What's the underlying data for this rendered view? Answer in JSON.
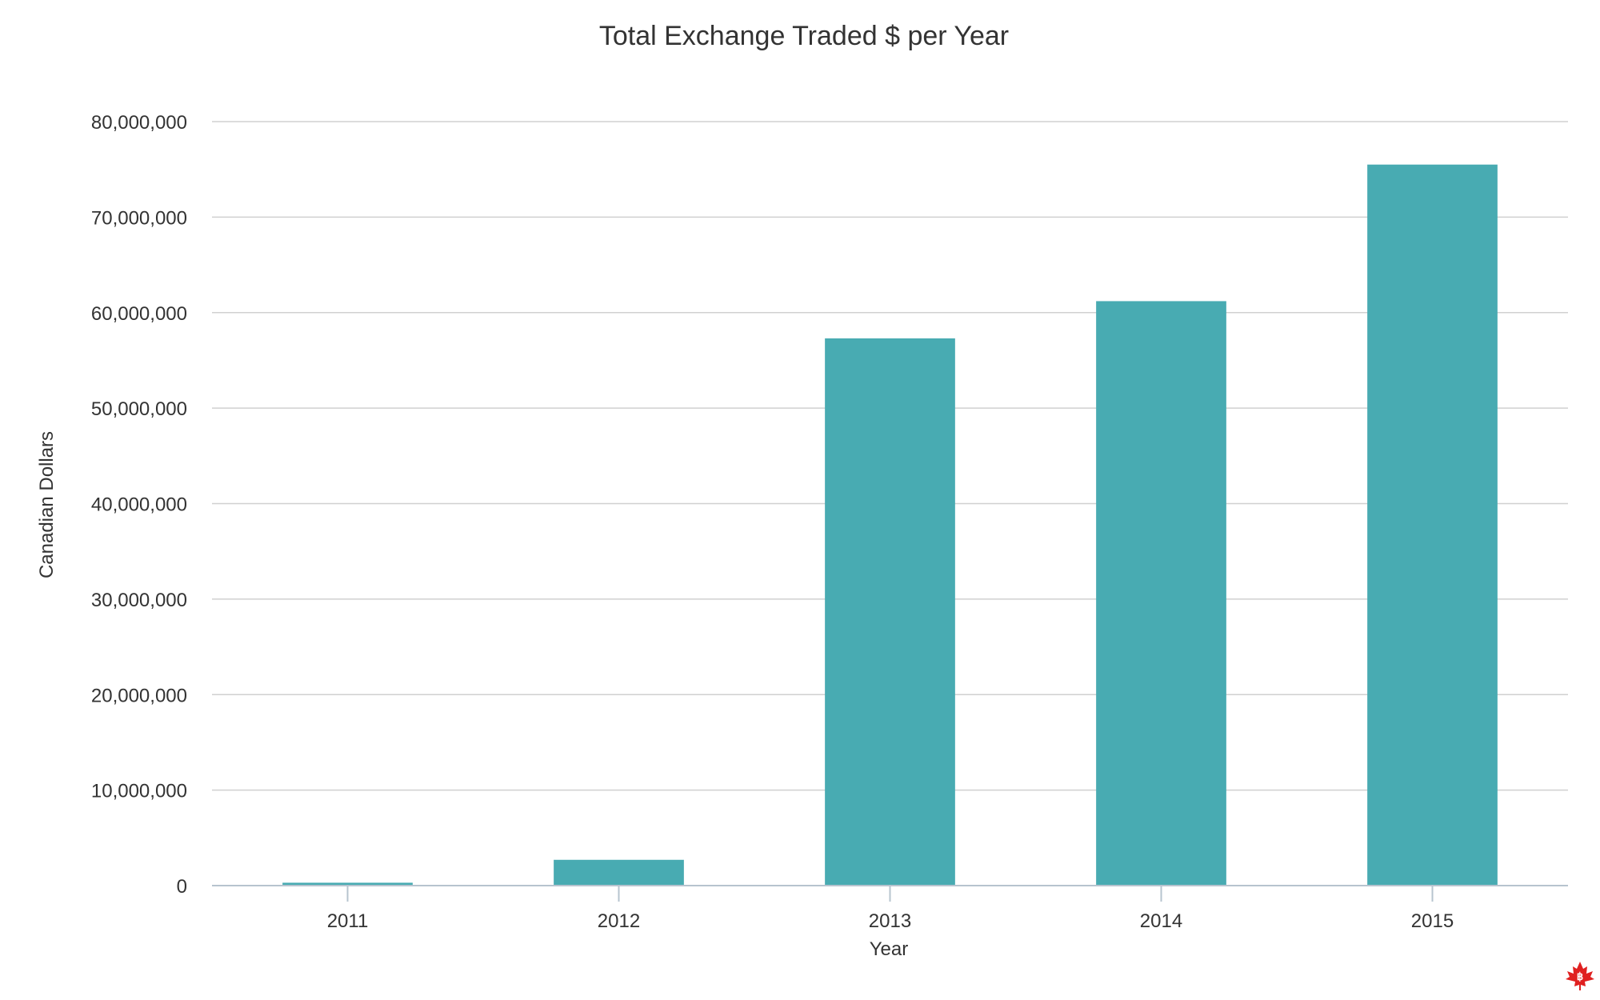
{
  "chart_data": {
    "type": "bar",
    "title": "Total Exchange Traded $ per Year",
    "xlabel": "Year",
    "ylabel": "Canadian Dollars",
    "categories": [
      "2011",
      "2012",
      "2013",
      "2014",
      "2015"
    ],
    "values": [
      300000,
      2700000,
      57300000,
      61200000,
      75500000
    ],
    "ylim": [
      0,
      80000000
    ],
    "yticks": [
      0,
      10000000,
      20000000,
      30000000,
      40000000,
      50000000,
      60000000,
      70000000,
      80000000
    ],
    "ytick_labels": [
      "0",
      "10,000,000",
      "20,000,000",
      "30,000,000",
      "40,000,000",
      "50,000,000",
      "60,000,000",
      "70,000,000",
      "80,000,000"
    ],
    "grid": true,
    "legend": "none",
    "bar_color": "#48abb2"
  },
  "logo": {
    "icon": "maple-leaf-bitcoin-icon",
    "color": "#e02020"
  }
}
